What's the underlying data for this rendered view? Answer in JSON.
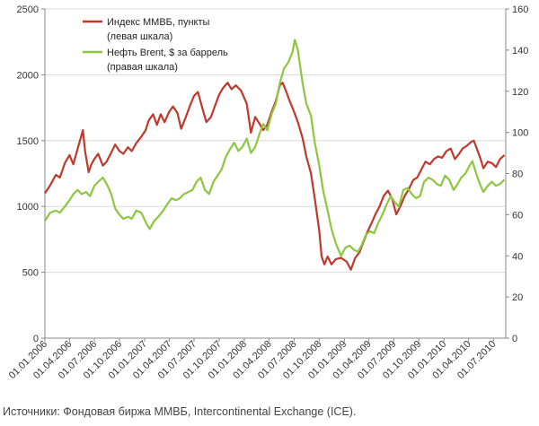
{
  "chart_data": {
    "type": "line",
    "title": "",
    "xlabel": "",
    "ylabel_left": "",
    "ylabel_right": "",
    "ylim_left": [
      0,
      2500
    ],
    "yticks_left": [
      0,
      500,
      1000,
      1500,
      2000,
      2500
    ],
    "ylim_right": [
      0,
      160
    ],
    "yticks_right": [
      0,
      20,
      40,
      60,
      80,
      100,
      120,
      140,
      160
    ],
    "x_start": "2006-01-01",
    "x_end": "2010-08-15",
    "x_tick_labels": [
      "01.01.2006",
      "01.04.2006",
      "01.07.2006",
      "01.10.2006",
      "01.01.2007",
      "01.04.2007",
      "01.07.2007",
      "01.10.2007",
      "01.01.2008",
      "01.04.2008",
      "01.07.2008",
      "01.10.2008",
      "01.01.2009",
      "01.04.2009",
      "01.07.2009",
      "01.10.2009",
      "01.01.2010",
      "01.04.2010",
      "01.07.2010"
    ],
    "x_tick_dates": [
      "2006-01-01",
      "2006-04-01",
      "2006-07-01",
      "2006-10-01",
      "2007-01-01",
      "2007-04-01",
      "2007-07-01",
      "2007-10-01",
      "2008-01-01",
      "2008-04-01",
      "2008-07-01",
      "2008-10-01",
      "2009-01-01",
      "2009-04-01",
      "2009-07-01",
      "2009-10-01",
      "2010-01-01",
      "2010-04-01",
      "2010-07-01"
    ],
    "grid": "horizontal",
    "legend_position": "top-center",
    "series": [
      {
        "name": "Индекс ММВБ, пункты",
        "name_line2": "(левая шкала)",
        "axis": "left",
        "color": "#c0392b",
        "points": [
          [
            "2006-01-01",
            1100
          ],
          [
            "2006-01-20",
            1160
          ],
          [
            "2006-02-10",
            1240
          ],
          [
            "2006-02-25",
            1220
          ],
          [
            "2006-03-15",
            1330
          ],
          [
            "2006-04-01",
            1390
          ],
          [
            "2006-04-15",
            1320
          ],
          [
            "2006-05-01",
            1440
          ],
          [
            "2006-05-12",
            1520
          ],
          [
            "2006-05-20",
            1580
          ],
          [
            "2006-05-28",
            1420
          ],
          [
            "2006-06-10",
            1260
          ],
          [
            "2006-06-20",
            1320
          ],
          [
            "2006-07-01",
            1360
          ],
          [
            "2006-07-15",
            1400
          ],
          [
            "2006-08-01",
            1310
          ],
          [
            "2006-08-15",
            1340
          ],
          [
            "2006-09-01",
            1410
          ],
          [
            "2006-09-15",
            1470
          ],
          [
            "2006-10-01",
            1420
          ],
          [
            "2006-10-15",
            1400
          ],
          [
            "2006-11-01",
            1450
          ],
          [
            "2006-11-15",
            1420
          ],
          [
            "2006-12-01",
            1480
          ],
          [
            "2006-12-20",
            1530
          ],
          [
            "2007-01-05",
            1580
          ],
          [
            "2007-01-15",
            1650
          ],
          [
            "2007-02-01",
            1700
          ],
          [
            "2007-02-15",
            1620
          ],
          [
            "2007-03-01",
            1700
          ],
          [
            "2007-03-15",
            1640
          ],
          [
            "2007-04-01",
            1720
          ],
          [
            "2007-04-15",
            1760
          ],
          [
            "2007-05-01",
            1710
          ],
          [
            "2007-05-15",
            1590
          ],
          [
            "2007-06-01",
            1680
          ],
          [
            "2007-06-15",
            1760
          ],
          [
            "2007-07-01",
            1840
          ],
          [
            "2007-07-15",
            1870
          ],
          [
            "2007-08-01",
            1740
          ],
          [
            "2007-08-15",
            1640
          ],
          [
            "2007-09-01",
            1680
          ],
          [
            "2007-09-15",
            1760
          ],
          [
            "2007-10-01",
            1850
          ],
          [
            "2007-10-15",
            1900
          ],
          [
            "2007-11-01",
            1940
          ],
          [
            "2007-11-15",
            1890
          ],
          [
            "2007-12-01",
            1920
          ],
          [
            "2007-12-20",
            1880
          ],
          [
            "2008-01-10",
            1780
          ],
          [
            "2008-01-25",
            1560
          ],
          [
            "2008-02-10",
            1680
          ],
          [
            "2008-02-25",
            1630
          ],
          [
            "2008-03-10",
            1580
          ],
          [
            "2008-03-25",
            1620
          ],
          [
            "2008-04-10",
            1720
          ],
          [
            "2008-04-25",
            1800
          ],
          [
            "2008-05-10",
            1920
          ],
          [
            "2008-05-20",
            1940
          ],
          [
            "2008-06-01",
            1880
          ],
          [
            "2008-06-15",
            1800
          ],
          [
            "2008-07-01",
            1720
          ],
          [
            "2008-07-15",
            1640
          ],
          [
            "2008-08-01",
            1520
          ],
          [
            "2008-08-15",
            1380
          ],
          [
            "2008-09-01",
            1250
          ],
          [
            "2008-09-15",
            1060
          ],
          [
            "2008-10-01",
            820
          ],
          [
            "2008-10-10",
            620
          ],
          [
            "2008-10-20",
            560
          ],
          [
            "2008-11-01",
            620
          ],
          [
            "2008-11-15",
            560
          ],
          [
            "2008-12-01",
            600
          ],
          [
            "2008-12-20",
            610
          ],
          [
            "2009-01-10",
            580
          ],
          [
            "2009-01-25",
            520
          ],
          [
            "2009-02-10",
            610
          ],
          [
            "2009-02-25",
            650
          ],
          [
            "2009-03-10",
            720
          ],
          [
            "2009-03-25",
            800
          ],
          [
            "2009-04-10",
            870
          ],
          [
            "2009-04-25",
            940
          ],
          [
            "2009-05-10",
            1000
          ],
          [
            "2009-05-25",
            1080
          ],
          [
            "2009-06-10",
            1120
          ],
          [
            "2009-06-25",
            1060
          ],
          [
            "2009-07-10",
            940
          ],
          [
            "2009-07-25",
            1000
          ],
          [
            "2009-08-10",
            1080
          ],
          [
            "2009-08-25",
            1130
          ],
          [
            "2009-09-10",
            1200
          ],
          [
            "2009-09-25",
            1220
          ],
          [
            "2009-10-10",
            1280
          ],
          [
            "2009-10-25",
            1340
          ],
          [
            "2009-11-10",
            1320
          ],
          [
            "2009-11-25",
            1360
          ],
          [
            "2009-12-10",
            1380
          ],
          [
            "2009-12-25",
            1370
          ],
          [
            "2010-01-10",
            1420
          ],
          [
            "2010-01-25",
            1440
          ],
          [
            "2010-02-10",
            1360
          ],
          [
            "2010-02-25",
            1400
          ],
          [
            "2010-03-10",
            1440
          ],
          [
            "2010-03-25",
            1460
          ],
          [
            "2010-04-10",
            1490
          ],
          [
            "2010-04-20",
            1500
          ],
          [
            "2010-05-01",
            1440
          ],
          [
            "2010-05-15",
            1360
          ],
          [
            "2010-05-25",
            1290
          ],
          [
            "2010-06-10",
            1340
          ],
          [
            "2010-06-25",
            1330
          ],
          [
            "2010-07-10",
            1300
          ],
          [
            "2010-07-25",
            1360
          ],
          [
            "2010-08-10",
            1390
          ]
        ]
      },
      {
        "name": "Нефть Brent, $ за баррель",
        "name_line2": "(правая шкала)",
        "axis": "right",
        "color": "#8dc63f",
        "points": [
          [
            "2006-01-01",
            57
          ],
          [
            "2006-01-20",
            61
          ],
          [
            "2006-02-10",
            62
          ],
          [
            "2006-02-25",
            61
          ],
          [
            "2006-03-15",
            64
          ],
          [
            "2006-04-01",
            67
          ],
          [
            "2006-04-15",
            70
          ],
          [
            "2006-05-01",
            72
          ],
          [
            "2006-05-15",
            70
          ],
          [
            "2006-06-01",
            71
          ],
          [
            "2006-06-15",
            69
          ],
          [
            "2006-07-01",
            74
          ],
          [
            "2006-07-15",
            76
          ],
          [
            "2006-08-01",
            78
          ],
          [
            "2006-08-15",
            75
          ],
          [
            "2006-09-01",
            70
          ],
          [
            "2006-09-15",
            63
          ],
          [
            "2006-10-01",
            60
          ],
          [
            "2006-10-15",
            58
          ],
          [
            "2006-11-01",
            59
          ],
          [
            "2006-11-15",
            58
          ],
          [
            "2006-12-01",
            62
          ],
          [
            "2006-12-20",
            61
          ],
          [
            "2007-01-10",
            55
          ],
          [
            "2007-01-20",
            53
          ],
          [
            "2007-02-05",
            57
          ],
          [
            "2007-02-20",
            59
          ],
          [
            "2007-03-10",
            62
          ],
          [
            "2007-03-25",
            65
          ],
          [
            "2007-04-10",
            68
          ],
          [
            "2007-04-25",
            67
          ],
          [
            "2007-05-10",
            68
          ],
          [
            "2007-05-25",
            70
          ],
          [
            "2007-06-10",
            71
          ],
          [
            "2007-06-25",
            72
          ],
          [
            "2007-07-10",
            76
          ],
          [
            "2007-07-25",
            78
          ],
          [
            "2007-08-10",
            72
          ],
          [
            "2007-08-25",
            70
          ],
          [
            "2007-09-10",
            76
          ],
          [
            "2007-09-25",
            79
          ],
          [
            "2007-10-10",
            82
          ],
          [
            "2007-10-25",
            88
          ],
          [
            "2007-11-10",
            92
          ],
          [
            "2007-11-25",
            95
          ],
          [
            "2007-12-10",
            91
          ],
          [
            "2007-12-25",
            93
          ],
          [
            "2008-01-10",
            97
          ],
          [
            "2008-01-25",
            90
          ],
          [
            "2008-02-10",
            93
          ],
          [
            "2008-02-25",
            99
          ],
          [
            "2008-03-10",
            104
          ],
          [
            "2008-03-25",
            101
          ],
          [
            "2008-04-10",
            109
          ],
          [
            "2008-04-25",
            114
          ],
          [
            "2008-05-10",
            124
          ],
          [
            "2008-05-25",
            131
          ],
          [
            "2008-06-10",
            134
          ],
          [
            "2008-06-25",
            139
          ],
          [
            "2008-07-04",
            145
          ],
          [
            "2008-07-15",
            140
          ],
          [
            "2008-08-01",
            124
          ],
          [
            "2008-08-15",
            114
          ],
          [
            "2008-09-01",
            108
          ],
          [
            "2008-09-15",
            95
          ],
          [
            "2008-10-01",
            84
          ],
          [
            "2008-10-15",
            72
          ],
          [
            "2008-11-01",
            62
          ],
          [
            "2008-11-15",
            53
          ],
          [
            "2008-12-01",
            46
          ],
          [
            "2008-12-20",
            40
          ],
          [
            "2009-01-05",
            44
          ],
          [
            "2009-01-20",
            45
          ],
          [
            "2009-02-05",
            43
          ],
          [
            "2009-02-20",
            42
          ],
          [
            "2009-03-05",
            45
          ],
          [
            "2009-03-20",
            50
          ],
          [
            "2009-04-05",
            52
          ],
          [
            "2009-04-20",
            51
          ],
          [
            "2009-05-05",
            56
          ],
          [
            "2009-05-20",
            60
          ],
          [
            "2009-06-05",
            65
          ],
          [
            "2009-06-20",
            69
          ],
          [
            "2009-07-05",
            66
          ],
          [
            "2009-07-20",
            64
          ],
          [
            "2009-08-05",
            72
          ],
          [
            "2009-08-20",
            73
          ],
          [
            "2009-09-05",
            70
          ],
          [
            "2009-09-20",
            68
          ],
          [
            "2009-10-05",
            69
          ],
          [
            "2009-10-20",
            76
          ],
          [
            "2009-11-05",
            78
          ],
          [
            "2009-11-20",
            77
          ],
          [
            "2009-12-05",
            75
          ],
          [
            "2009-12-20",
            74
          ],
          [
            "2010-01-05",
            79
          ],
          [
            "2010-01-20",
            77
          ],
          [
            "2010-02-05",
            72
          ],
          [
            "2010-02-20",
            75
          ],
          [
            "2010-03-05",
            78
          ],
          [
            "2010-03-20",
            80
          ],
          [
            "2010-04-05",
            84
          ],
          [
            "2010-04-15",
            86
          ],
          [
            "2010-05-01",
            79
          ],
          [
            "2010-05-15",
            74
          ],
          [
            "2010-05-25",
            71
          ],
          [
            "2010-06-10",
            74
          ],
          [
            "2010-06-25",
            76
          ],
          [
            "2010-07-10",
            74
          ],
          [
            "2010-07-25",
            75
          ],
          [
            "2010-08-10",
            77
          ]
        ]
      }
    ]
  },
  "colors": {
    "axis": "#888888",
    "grid": "#d9d9d9"
  },
  "footer": {
    "source": "Источники: Фондовая биржа ММВБ, Intercontinental Exchange (ICE)."
  }
}
